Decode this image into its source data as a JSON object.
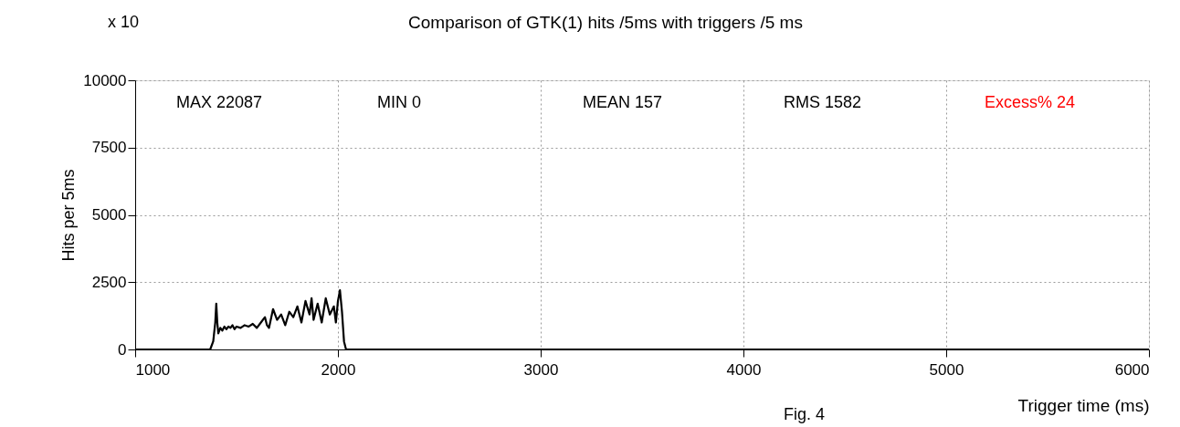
{
  "chart_data": {
    "type": "line",
    "title": "Comparison of GTK(1) hits /5ms  with triggers /5 ms",
    "xlabel": "Trigger time (ms)",
    "ylabel": "Hits per 5ms",
    "annotations": [
      "x 10",
      "MAX   22087",
      "MIN   0",
      "MEAN   157",
      "RMS    1582",
      "Excess% 24",
      "Fig. 4"
    ],
    "x": [
      1000,
      1370,
      1385,
      1395,
      1400,
      1405,
      1410,
      1420,
      1430,
      1440,
      1450,
      1460,
      1470,
      1480,
      1490,
      1500,
      1520,
      1540,
      1560,
      1580,
      1600,
      1620,
      1640,
      1650,
      1660,
      1680,
      1700,
      1720,
      1740,
      1760,
      1780,
      1800,
      1820,
      1840,
      1860,
      1870,
      1880,
      1900,
      1920,
      1940,
      1960,
      1980,
      1990,
      2000,
      2010,
      2020,
      2030,
      2040,
      6000
    ],
    "series": [
      {
        "color": "#000000",
        "values": [
          0,
          0,
          300,
          1000,
          1700,
          1000,
          600,
          800,
          700,
          850,
          750,
          850,
          800,
          900,
          750,
          850,
          800,
          900,
          850,
          950,
          800,
          1000,
          1200,
          900,
          800,
          1500,
          1100,
          1300,
          900,
          1400,
          1200,
          1600,
          1000,
          1800,
          1300,
          1900,
          1100,
          1700,
          1000,
          1900,
          1300,
          1600,
          1000,
          1800,
          2200,
          1400,
          300,
          0,
          0
        ]
      }
    ],
    "xlim": [
      1000,
      6000
    ],
    "xticks": [
      1000,
      2000,
      3000,
      4000,
      5000,
      6000
    ],
    "ylim": [
      0,
      10000
    ],
    "yticks": [
      0,
      2500,
      5000,
      7500,
      10000
    ],
    "grid": true,
    "legend": false,
    "marker": "none",
    "line_style": "solid"
  }
}
